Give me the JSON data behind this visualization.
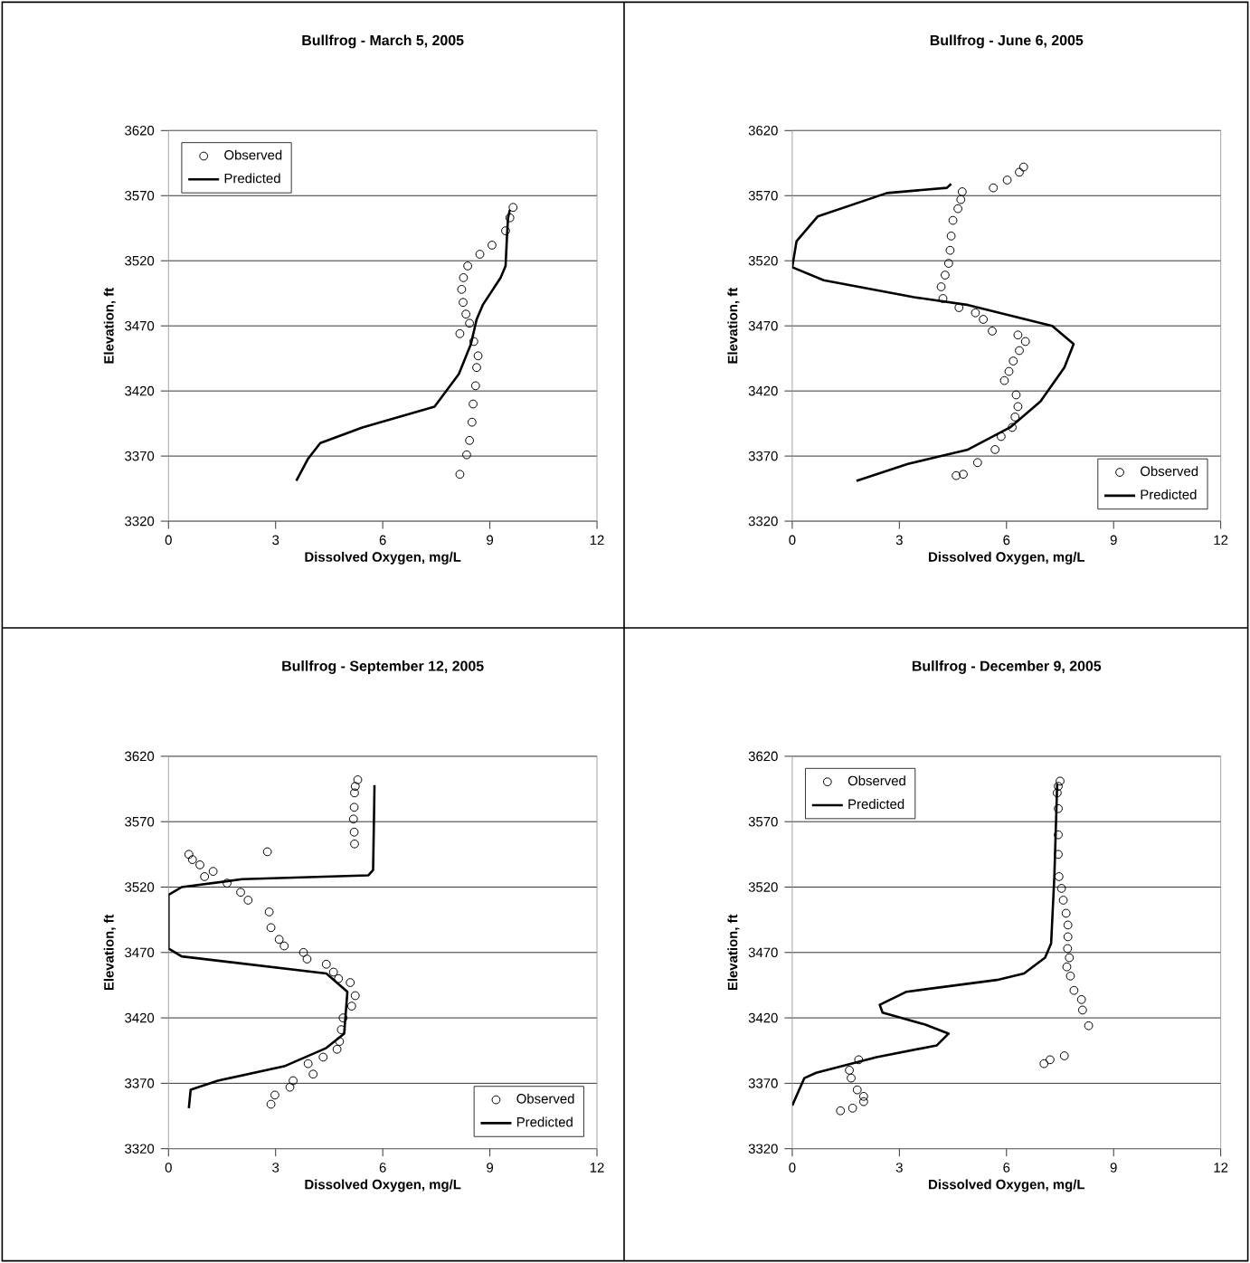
{
  "chart_data": [
    {
      "type": "scatter",
      "title": "Bullfrog - March 5, 2005",
      "xlabel": "Dissolved Oxygen, mg/L",
      "ylabel": "Elevation, ft",
      "xlim": [
        0,
        12
      ],
      "xticks": [
        0,
        3,
        6,
        9,
        12
      ],
      "ylim": [
        3320,
        3620
      ],
      "yticks": [
        3320,
        3370,
        3420,
        3470,
        3520,
        3570,
        3620
      ],
      "grid": "y",
      "legend": "top left",
      "series": [
        {
          "name": "Observed",
          "type": "scatter",
          "marker": "circle",
          "color": "#000000",
          "x": [
            9.65,
            9.56,
            9.44,
            9.06,
            8.72,
            8.38,
            8.26,
            8.21,
            8.25,
            8.33,
            8.43,
            8.16,
            8.55,
            8.67,
            8.63,
            8.6,
            8.53,
            8.5,
            8.43,
            8.35,
            8.16
          ],
          "values": [
            3561,
            3553,
            3543,
            3532,
            3525,
            3516,
            3507,
            3498,
            3488,
            3479,
            3472,
            3464,
            3458,
            3447,
            3438,
            3424,
            3410,
            3396,
            3382,
            3371,
            3356
          ]
        },
        {
          "name": "Predicted",
          "type": "line",
          "marker": "none",
          "color": "#000000",
          "x": [
            3.58,
            3.91,
            4.25,
            5.43,
            7.45,
            8.13,
            8.47,
            8.63,
            8.8,
            9.3,
            9.44,
            9.48,
            9.51,
            9.56
          ],
          "values": [
            3351,
            3368,
            3380,
            3392,
            3408,
            3433,
            3456,
            3475,
            3486,
            3507,
            3516,
            3539,
            3553,
            3559
          ]
        }
      ]
    },
    {
      "type": "scatter",
      "title": "Bullfrog - June 6, 2005",
      "xlabel": "Dissolved Oxygen, mg/L",
      "ylabel": "Elevation, ft",
      "xlim": [
        0,
        12
      ],
      "xticks": [
        0,
        3,
        6,
        9,
        12
      ],
      "ylim": [
        3320,
        3620
      ],
      "yticks": [
        3320,
        3370,
        3420,
        3470,
        3520,
        3570,
        3620
      ],
      "grid": "y",
      "legend": "bottom right",
      "series": [
        {
          "name": "Observed",
          "type": "scatter",
          "marker": "circle",
          "color": "#000000",
          "x": [
            6.48,
            6.36,
            6.02,
            5.63,
            4.76,
            4.72,
            4.64,
            4.5,
            4.45,
            4.42,
            4.38,
            4.28,
            4.17,
            4.22,
            4.67,
            5.13,
            5.35,
            5.6,
            6.32,
            6.53,
            6.36,
            6.19,
            6.07,
            5.94,
            6.27,
            6.32,
            6.24,
            6.16,
            5.85,
            5.68,
            5.19,
            4.79,
            4.59
          ],
          "values": [
            3592,
            3588,
            3582,
            3576,
            3573,
            3567,
            3560,
            3551,
            3539,
            3528,
            3518,
            3509,
            3500,
            3491,
            3484,
            3480,
            3475,
            3466,
            3463,
            3458,
            3451,
            3443,
            3435,
            3428,
            3417,
            3408,
            3400,
            3392,
            3385,
            3375,
            3365,
            3356,
            3355
          ]
        },
        {
          "name": "Predicted",
          "type": "line",
          "marker": "none",
          "color": "#000000",
          "x": [
            4.45,
            4.33,
            2.65,
            0.71,
            0.12,
            0,
            0.88,
            3.41,
            4.93,
            7.28,
            7.88,
            7.62,
            6.95,
            6.1,
            4.92,
            3.24,
            1.8
          ],
          "values": [
            3579,
            3576,
            3572,
            3554,
            3535,
            3515,
            3505,
            3492,
            3486,
            3470,
            3456,
            3438,
            3412,
            3392,
            3375,
            3364,
            3351
          ]
        }
      ]
    },
    {
      "type": "scatter",
      "title": "Bullfrog - September 12, 2005",
      "xlabel": "Dissolved Oxygen, mg/L",
      "ylabel": "Elevation, ft",
      "xlim": [
        0,
        12
      ],
      "xticks": [
        0,
        3,
        6,
        9,
        12
      ],
      "ylim": [
        3320,
        3620
      ],
      "yticks": [
        3320,
        3370,
        3420,
        3470,
        3520,
        3570,
        3620
      ],
      "grid": "y",
      "legend": "bottom right",
      "series": [
        {
          "name": "Observed",
          "type": "scatter",
          "marker": "circle",
          "color": "#000000",
          "x": [
            5.3,
            5.23,
            5.21,
            5.2,
            5.18,
            5.2,
            5.21,
            2.77,
            0.57,
            0.67,
            0.88,
            1.25,
            1.01,
            1.64,
            2.02,
            2.23,
            2.82,
            2.87,
            3.1,
            3.24,
            3.78,
            3.88,
            4.42,
            4.62,
            4.76,
            5.09,
            5.23,
            5.13,
            4.89,
            4.84,
            4.79,
            4.72,
            4.33,
            3.91,
            4.05,
            3.49,
            3.4,
            2.98,
            2.87
          ],
          "values": [
            3602,
            3597,
            3592,
            3581,
            3572,
            3562,
            3553,
            3547,
            3545,
            3541,
            3537,
            3532,
            3528,
            3523,
            3516,
            3510,
            3501,
            3489,
            3480,
            3475,
            3470,
            3465,
            3461,
            3455,
            3450,
            3447,
            3437,
            3429,
            3420,
            3411,
            3402,
            3396,
            3390,
            3385,
            3377,
            3372,
            3367,
            3361,
            3354
          ]
        },
        {
          "name": "Predicted",
          "type": "line",
          "marker": "none",
          "color": "#000000",
          "x": [
            5.77,
            5.73,
            5.6,
            2.06,
            0.37,
            0,
            0,
            0.37,
            4.42,
            5.01,
            4.92,
            4.42,
            3.24,
            1.38,
            0.62,
            0.57
          ],
          "values": [
            3598,
            3533,
            3529,
            3526,
            3520,
            3514,
            3473,
            3467,
            3454,
            3440,
            3408,
            3397,
            3383,
            3372,
            3365,
            3351
          ]
        }
      ]
    },
    {
      "type": "scatter",
      "title": "Bullfrog - December 9, 2005",
      "xlabel": "Dissolved Oxygen, mg/L",
      "ylabel": "Elevation, ft",
      "xlim": [
        0,
        12
      ],
      "xticks": [
        0,
        3,
        6,
        9,
        12
      ],
      "ylim": [
        3320,
        3620
      ],
      "yticks": [
        3320,
        3370,
        3420,
        3470,
        3520,
        3570,
        3620
      ],
      "grid": "y",
      "legend": "top left",
      "series": [
        {
          "name": "Observed",
          "type": "scatter",
          "marker": "circle",
          "color": "#000000",
          "x": [
            7.5,
            7.45,
            7.42,
            7.45,
            7.45,
            7.45,
            7.47,
            7.54,
            7.59,
            7.67,
            7.72,
            7.72,
            7.71,
            7.76,
            7.69,
            7.79,
            7.89,
            8.1,
            8.13,
            8.3,
            7.62,
            7.22,
            7.05,
            1.86,
            1.6,
            1.65,
            1.82,
            2.0,
            2.0,
            1.69,
            1.35
          ],
          "values": [
            3601,
            3597,
            3592,
            3580,
            3560,
            3545,
            3528,
            3519,
            3510,
            3500,
            3491,
            3482,
            3473,
            3466,
            3459,
            3452,
            3441,
            3434,
            3426,
            3414,
            3391,
            3388,
            3385,
            3388,
            3380,
            3374,
            3365,
            3360,
            3356,
            3351,
            3349
          ]
        },
        {
          "name": "Predicted",
          "type": "line",
          "marker": "none",
          "color": "#000000",
          "x": [
            7.42,
            7.34,
            7.25,
            7.08,
            6.49,
            5.73,
            3.2,
            2.45,
            2.53,
            3.71,
            4.38,
            4.05,
            2.36,
            0.67,
            0.34,
            0
          ],
          "values": [
            3599,
            3528,
            3477,
            3466,
            3454,
            3449,
            3440,
            3430,
            3424,
            3415,
            3408,
            3399,
            3390,
            3378,
            3374,
            3353
          ]
        }
      ]
    }
  ]
}
